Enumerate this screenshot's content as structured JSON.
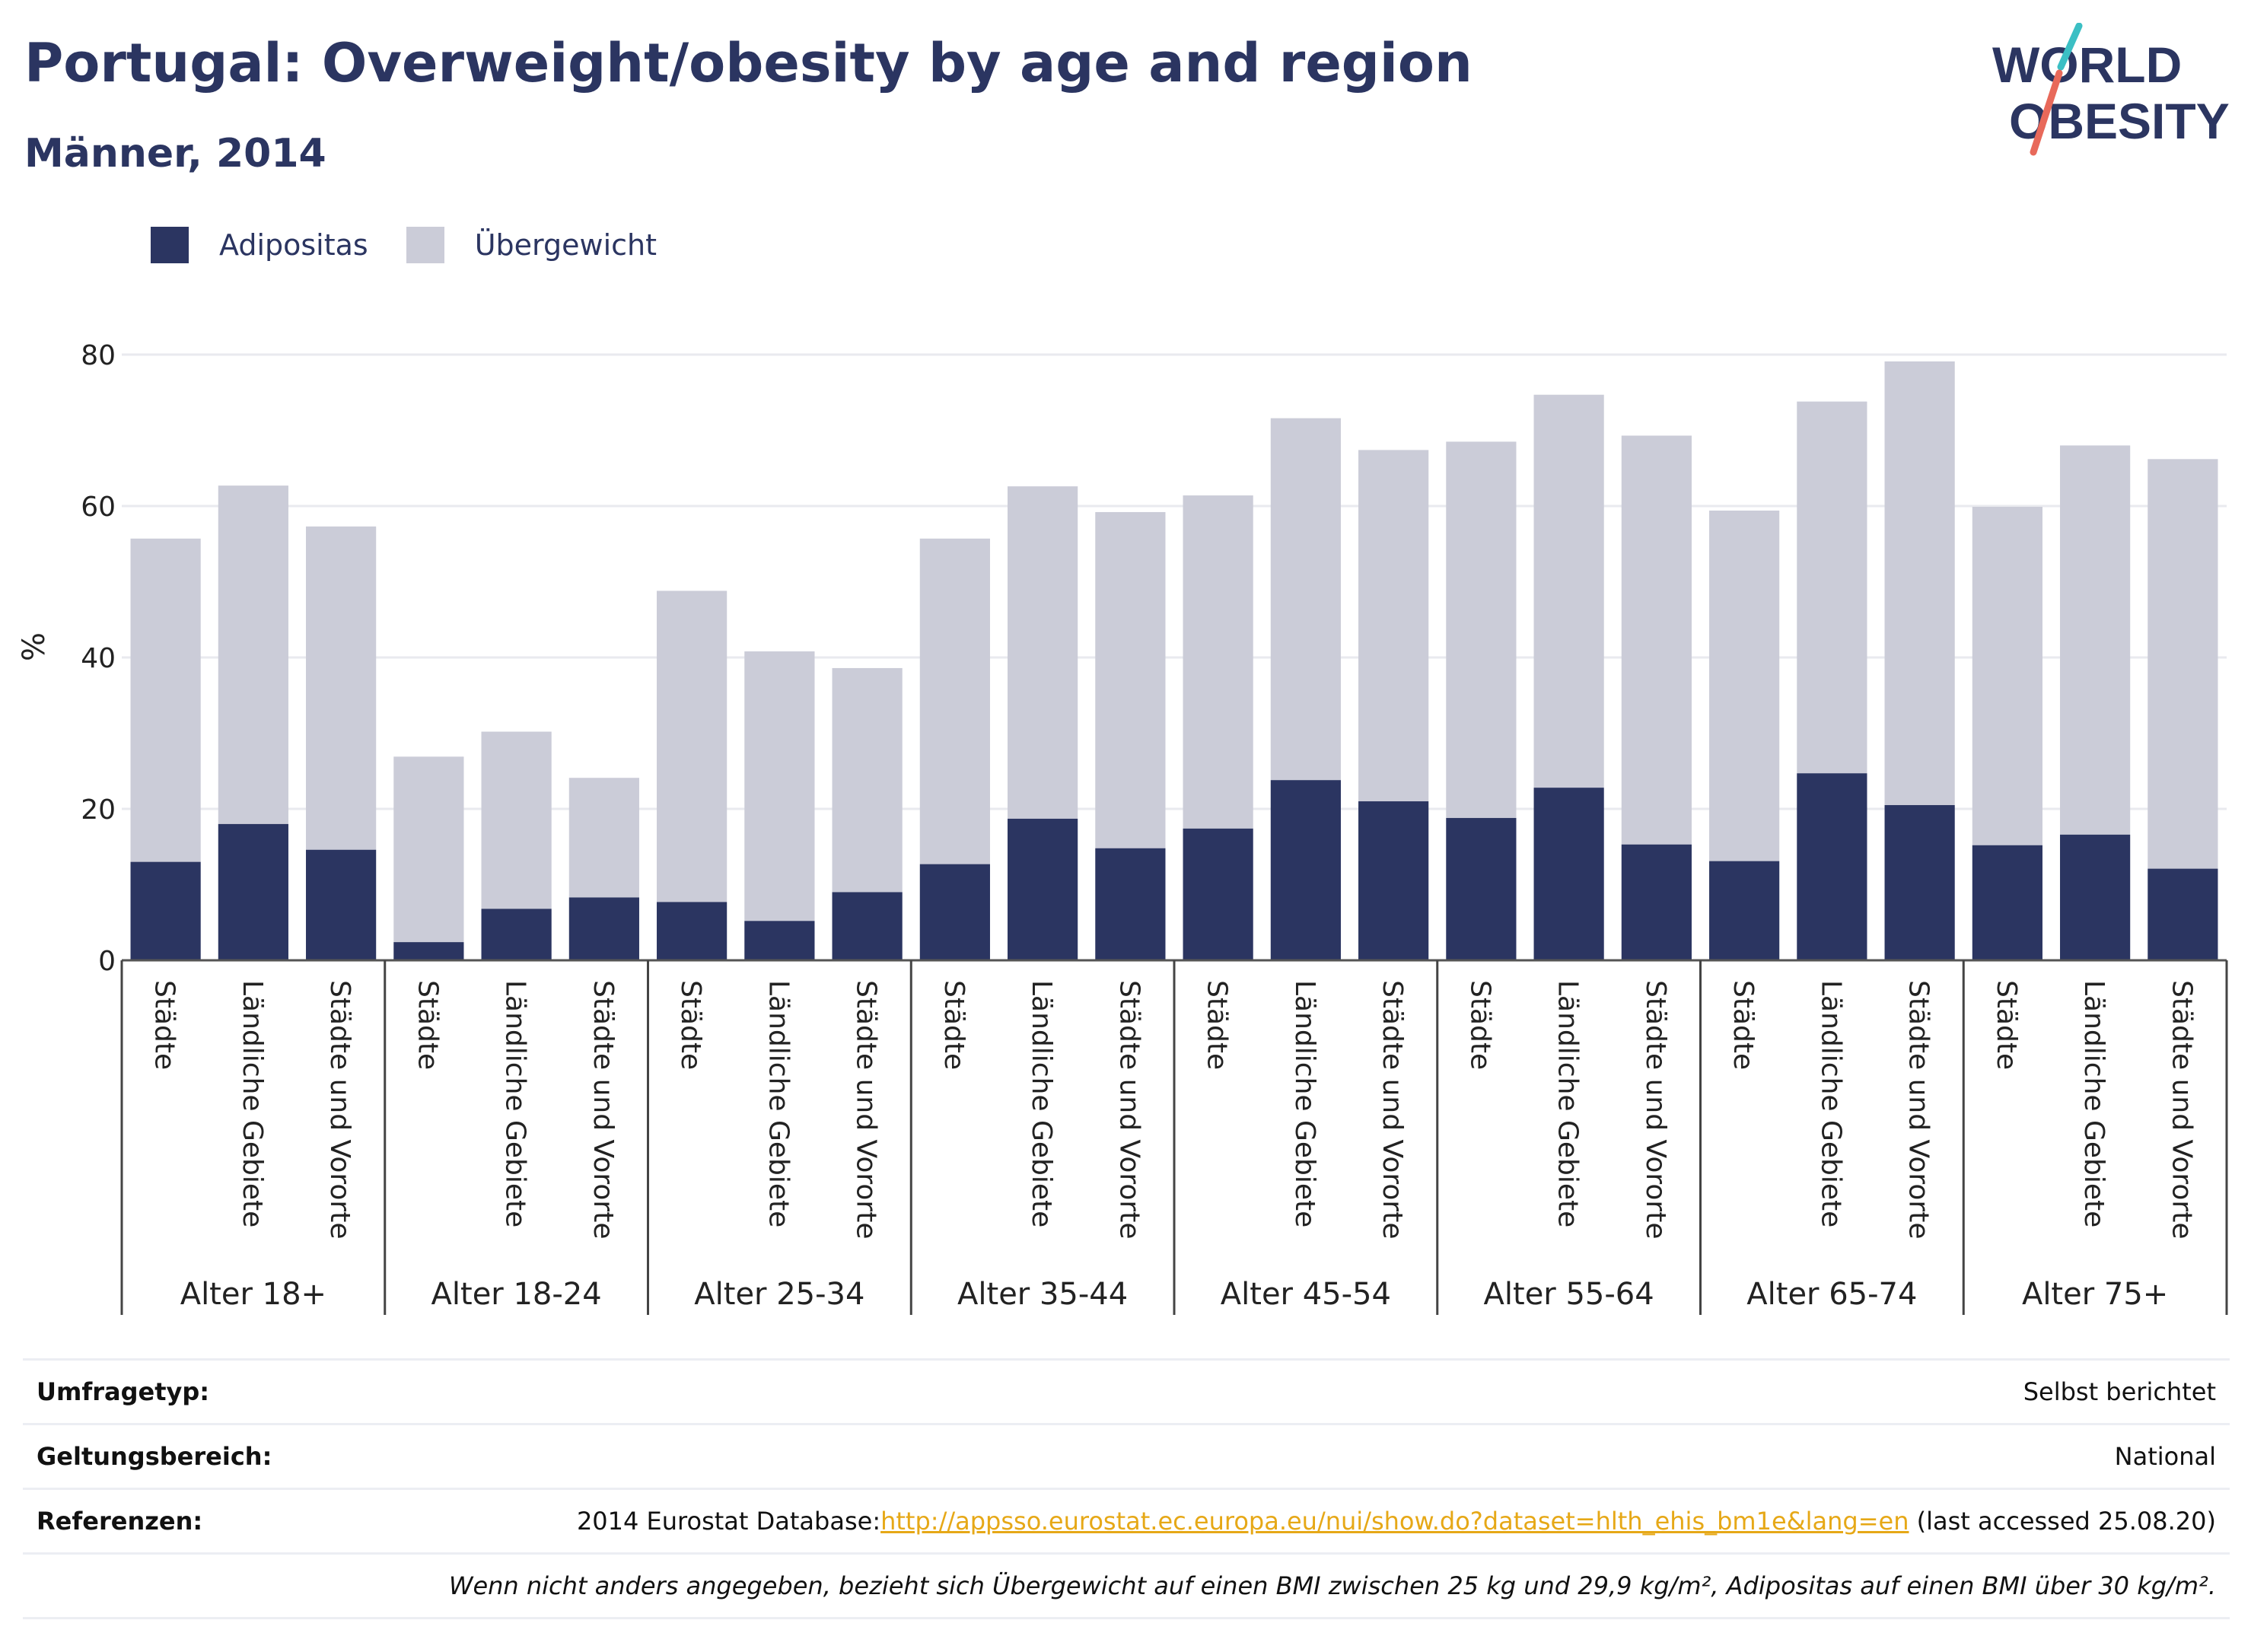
{
  "header": {
    "title": "Portugal: Overweight/obesity by age and region",
    "subtitle": "Männer, 2014"
  },
  "logo": {
    "line1": "WORLD",
    "line2": "OBESITY"
  },
  "legend": {
    "items": [
      {
        "label": "Adipositas",
        "color": "#2b3561"
      },
      {
        "label": "Übergewicht",
        "color": "#cbccd8"
      }
    ]
  },
  "chart_data": {
    "type": "bar",
    "stacked": true,
    "ylabel": "%",
    "ylim": [
      0,
      80
    ],
    "yticks": [
      0,
      20,
      40,
      60,
      80
    ],
    "grid": true,
    "legend_position": "top-left",
    "groups": [
      {
        "label": "Alter 18+",
        "categories": [
          "Städte",
          "Ländliche Gebiete",
          "Städte und Vororte"
        ]
      },
      {
        "label": "Alter 18-24",
        "categories": [
          "Städte",
          "Ländliche Gebiete",
          "Städte und Vororte"
        ]
      },
      {
        "label": "Alter 25-34",
        "categories": [
          "Städte",
          "Ländliche Gebiete",
          "Städte und Vororte"
        ]
      },
      {
        "label": "Alter 35-44",
        "categories": [
          "Städte",
          "Ländliche Gebiete",
          "Städte und Vororte"
        ]
      },
      {
        "label": "Alter 45-54",
        "categories": [
          "Städte",
          "Ländliche Gebiete",
          "Städte und Vororte"
        ]
      },
      {
        "label": "Alter 55-64",
        "categories": [
          "Städte",
          "Ländliche Gebiete",
          "Städte und Vororte"
        ]
      },
      {
        "label": "Alter 65-74",
        "categories": [
          "Städte",
          "Ländliche Gebiete",
          "Städte und Vororte"
        ]
      },
      {
        "label": "Alter 75+",
        "categories": [
          "Städte",
          "Ländliche Gebiete",
          "Städte und Vororte"
        ]
      }
    ],
    "series": [
      {
        "name": "Adipositas",
        "color": "#2b3561",
        "values": [
          13.0,
          18.0,
          14.6,
          2.4,
          6.8,
          8.3,
          7.7,
          5.2,
          9.0,
          12.7,
          18.7,
          14.8,
          17.4,
          23.8,
          21.0,
          18.8,
          22.8,
          15.3,
          13.1,
          24.7,
          20.5,
          15.2,
          16.6,
          12.1
        ]
      },
      {
        "name": "Übergewicht",
        "color": "#cbccd8",
        "values": [
          42.7,
          44.7,
          42.7,
          24.5,
          23.4,
          15.8,
          41.1,
          35.6,
          29.6,
          43.0,
          43.9,
          44.4,
          44.0,
          47.8,
          46.4,
          49.7,
          51.9,
          54.0,
          46.3,
          49.1,
          58.6,
          44.7,
          51.4,
          54.1
        ]
      }
    ]
  },
  "info_table": {
    "rows": [
      {
        "key": "Umfragetyp:",
        "value": "Selbst berichtet"
      },
      {
        "key": "Geltungsbereich:",
        "value": "National"
      },
      {
        "key": "Referenzen:",
        "prefix": "2014 Eurostat Database:",
        "link": "http://appsso.eurostat.ec.europa.eu/nui/show.do?dataset=hlth_ehis_bm1e&lang=en",
        "suffix": " (last accessed 25.08.20)"
      }
    ],
    "note": "Wenn nicht anders angegeben, bezieht sich Übergewicht auf einen BMI zwischen 25 kg und 29,9 kg/m², Adipositas auf einen BMI über 30 kg/m²."
  }
}
